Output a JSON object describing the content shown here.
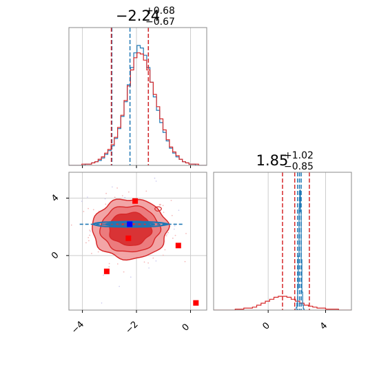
{
  "colors": {
    "blue": "#1f77b4",
    "red": "#d62728",
    "red_light": "#f2a5a6",
    "red_mid": "#e8595b",
    "marker_red": "#ff0000",
    "marker_blue": "#0000ff",
    "grid": "#cccccc",
    "frame": "#888888"
  },
  "chart_data": [
    {
      "type": "histogram",
      "panel": "x-marginal",
      "title": {
        "value": "−2.24",
        "upper": "+0.68",
        "lower": "−0.67"
      },
      "xlim": [
        -4.5,
        0.6
      ],
      "grid": true,
      "blue_series": {
        "bin_start": -4.5,
        "bin_width": 0.12,
        "counts": [
          0,
          0,
          0,
          0,
          0,
          1,
          1,
          2,
          3,
          4,
          6,
          9,
          12,
          16,
          22,
          30,
          40,
          52,
          66,
          80,
          92,
          98,
          96,
          90,
          80,
          68,
          56,
          45,
          35,
          27,
          20,
          14,
          10,
          7,
          5,
          3,
          2,
          1,
          1,
          0,
          0,
          0,
          0
        ]
      },
      "red_series": {
        "bin_start": -4.5,
        "bin_width": 0.12,
        "counts": [
          0,
          0,
          0,
          0,
          1,
          1,
          1,
          2,
          3,
          5,
          7,
          10,
          13,
          17,
          23,
          31,
          41,
          53,
          65,
          78,
          88,
          92,
          91,
          86,
          78,
          68,
          58,
          48,
          38,
          29,
          21,
          15,
          11,
          8,
          5,
          3,
          2,
          1,
          1,
          1,
          0,
          0,
          0
        ]
      },
      "blue_quantiles": [
        -2.91,
        -2.24,
        -1.56
      ],
      "red_quantiles": [
        -2.93,
        -1.56
      ]
    },
    {
      "type": "histogram",
      "panel": "y-marginal",
      "title": {
        "value": "1.85",
        "upper": "+1.02",
        "lower": "−0.85"
      },
      "xlim": [
        -3.8,
        5.8
      ],
      "xticks": [
        0,
        4
      ],
      "grid": true,
      "blue_series": {
        "bin_start": 1.9,
        "bin_width": 0.05,
        "counts": [
          0,
          2,
          6,
          18,
          45,
          85,
          100,
          82,
          42,
          15,
          4,
          1,
          0
        ]
      },
      "red_series": {
        "bin_start": -3.8,
        "bin_width": 0.3,
        "counts": [
          0,
          0,
          0,
          0,
          0,
          1,
          1,
          2,
          2,
          3,
          5,
          7,
          9,
          11,
          13,
          14,
          14,
          13,
          11,
          9,
          7,
          5,
          4,
          3,
          2,
          2,
          1,
          1,
          1,
          0,
          0,
          0
        ]
      },
      "blue_quantiles": [
        2.05,
        2.18,
        2.3
      ],
      "red_quantiles": [
        1.0,
        1.85,
        2.87
      ]
    },
    {
      "type": "contour",
      "panel": "joint",
      "xlim": [
        -4.5,
        0.6
      ],
      "ylim": [
        -3.8,
        5.8
      ],
      "xticks": [
        -4,
        -2,
        0
      ],
      "yticks": [
        0,
        4
      ],
      "grid": true,
      "red_center": [
        -2.24,
        1.85
      ],
      "red_spread": [
        0.68,
        0.95
      ],
      "blue_center": [
        -2.24,
        2.18
      ],
      "blue_spread": [
        0.68,
        0.06
      ],
      "red_markers": [
        [
          -2.05,
          3.8
        ],
        [
          -2.3,
          1.2
        ],
        [
          -0.45,
          0.7
        ],
        [
          -3.1,
          -1.1
        ],
        [
          0.2,
          -3.3
        ]
      ],
      "blue_marker": [
        -2.25,
        2.18
      ]
    }
  ]
}
